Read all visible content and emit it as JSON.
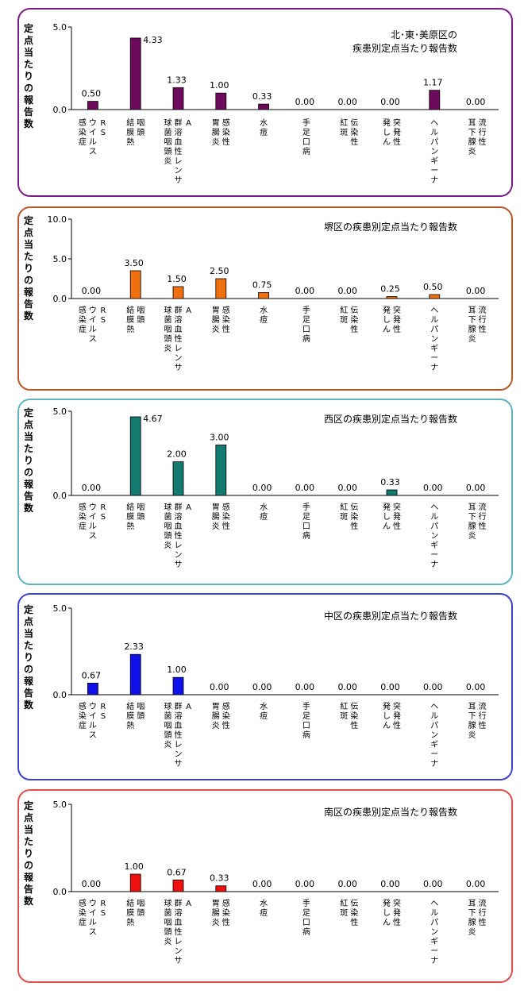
{
  "ylabel": "定点当たりの報告数",
  "categories": [
    [
      "RS",
      "ウイルス",
      "感染症"
    ],
    [
      "咽頭",
      "結膜熱"
    ],
    [
      "A",
      "群溶血性レンサ",
      "球菌咽頭炎"
    ],
    [
      "感染性",
      "胃腸炎"
    ],
    [
      "水痘"
    ],
    [
      "手足口病"
    ],
    [
      "伝染性",
      "紅斑"
    ],
    [
      "突発性",
      "発しん"
    ],
    [
      "ヘルパンギーナ"
    ],
    [
      "流行性",
      "耳下腺炎"
    ]
  ],
  "chart_data": [
    {
      "type": "bar",
      "title_lines": [
        "北･東･美原区の",
        "疾患別定点当たり報告数"
      ],
      "ylim": [
        0,
        5
      ],
      "yticks": [
        "0.0",
        "5.0"
      ],
      "values": [
        0.5,
        4.33,
        1.33,
        1.0,
        0.33,
        0.0,
        0.0,
        0.0,
        1.17,
        0.0
      ],
      "labels": [
        "0.50",
        "4.33",
        "1.33",
        "1.00",
        "0.33",
        "0.00",
        "0.00",
        "0.00",
        "1.17",
        "0.00"
      ],
      "color": "#6e0a5c",
      "border_color": "#7a1d8a"
    },
    {
      "type": "bar",
      "title_lines": [
        "堺区の疾患別定点当たり報告数"
      ],
      "ylim": [
        0,
        10
      ],
      "yticks": [
        "0.0",
        "5.0",
        "10.0"
      ],
      "values": [
        0.0,
        3.5,
        1.5,
        2.5,
        0.75,
        0.0,
        0.0,
        0.25,
        0.5,
        0.0
      ],
      "labels": [
        "0.00",
        "3.50",
        "1.50",
        "2.50",
        "0.75",
        "0.00",
        "0.00",
        "0.25",
        "0.50",
        "0.00"
      ],
      "color": "#f07010",
      "border_color": "#b9572e"
    },
    {
      "type": "bar",
      "title_lines": [
        "西区の疾患別定点当たり報告数"
      ],
      "ylim": [
        0,
        5
      ],
      "yticks": [
        "0.0",
        "5.0"
      ],
      "values": [
        0.0,
        4.67,
        2.0,
        3.0,
        0.0,
        0.0,
        0.0,
        0.33,
        0.0,
        0.0
      ],
      "labels": [
        "0.00",
        "4.67",
        "2.00",
        "3.00",
        "0.00",
        "0.00",
        "0.00",
        "0.33",
        "0.00",
        "0.00"
      ],
      "color": "#127a6e",
      "border_color": "#5fb4bd"
    },
    {
      "type": "bar",
      "title_lines": [
        "中区の疾患別定点当たり報告数"
      ],
      "ylim": [
        0,
        5
      ],
      "yticks": [
        "0.0",
        "5.0"
      ],
      "values": [
        0.67,
        2.33,
        1.0,
        0.0,
        0.0,
        0.0,
        0.0,
        0.0,
        0.0,
        0.0
      ],
      "labels": [
        "0.67",
        "2.33",
        "1.00",
        "0.00",
        "0.00",
        "0.00",
        "0.00",
        "0.00",
        "0.00",
        "0.00"
      ],
      "color": "#1010e8",
      "border_color": "#4040d0"
    },
    {
      "type": "bar",
      "title_lines": [
        "南区の疾患別定点当たり報告数"
      ],
      "ylim": [
        0,
        5
      ],
      "yticks": [
        "0.0",
        "5.0"
      ],
      "values": [
        0.0,
        1.0,
        0.67,
        0.33,
        0.0,
        0.0,
        0.0,
        0.0,
        0.0,
        0.0
      ],
      "labels": [
        "0.00",
        "1.00",
        "0.67",
        "0.33",
        "0.00",
        "0.00",
        "0.00",
        "0.00",
        "0.00",
        "0.00"
      ],
      "color": "#ee1010",
      "border_color": "#e05050"
    }
  ]
}
